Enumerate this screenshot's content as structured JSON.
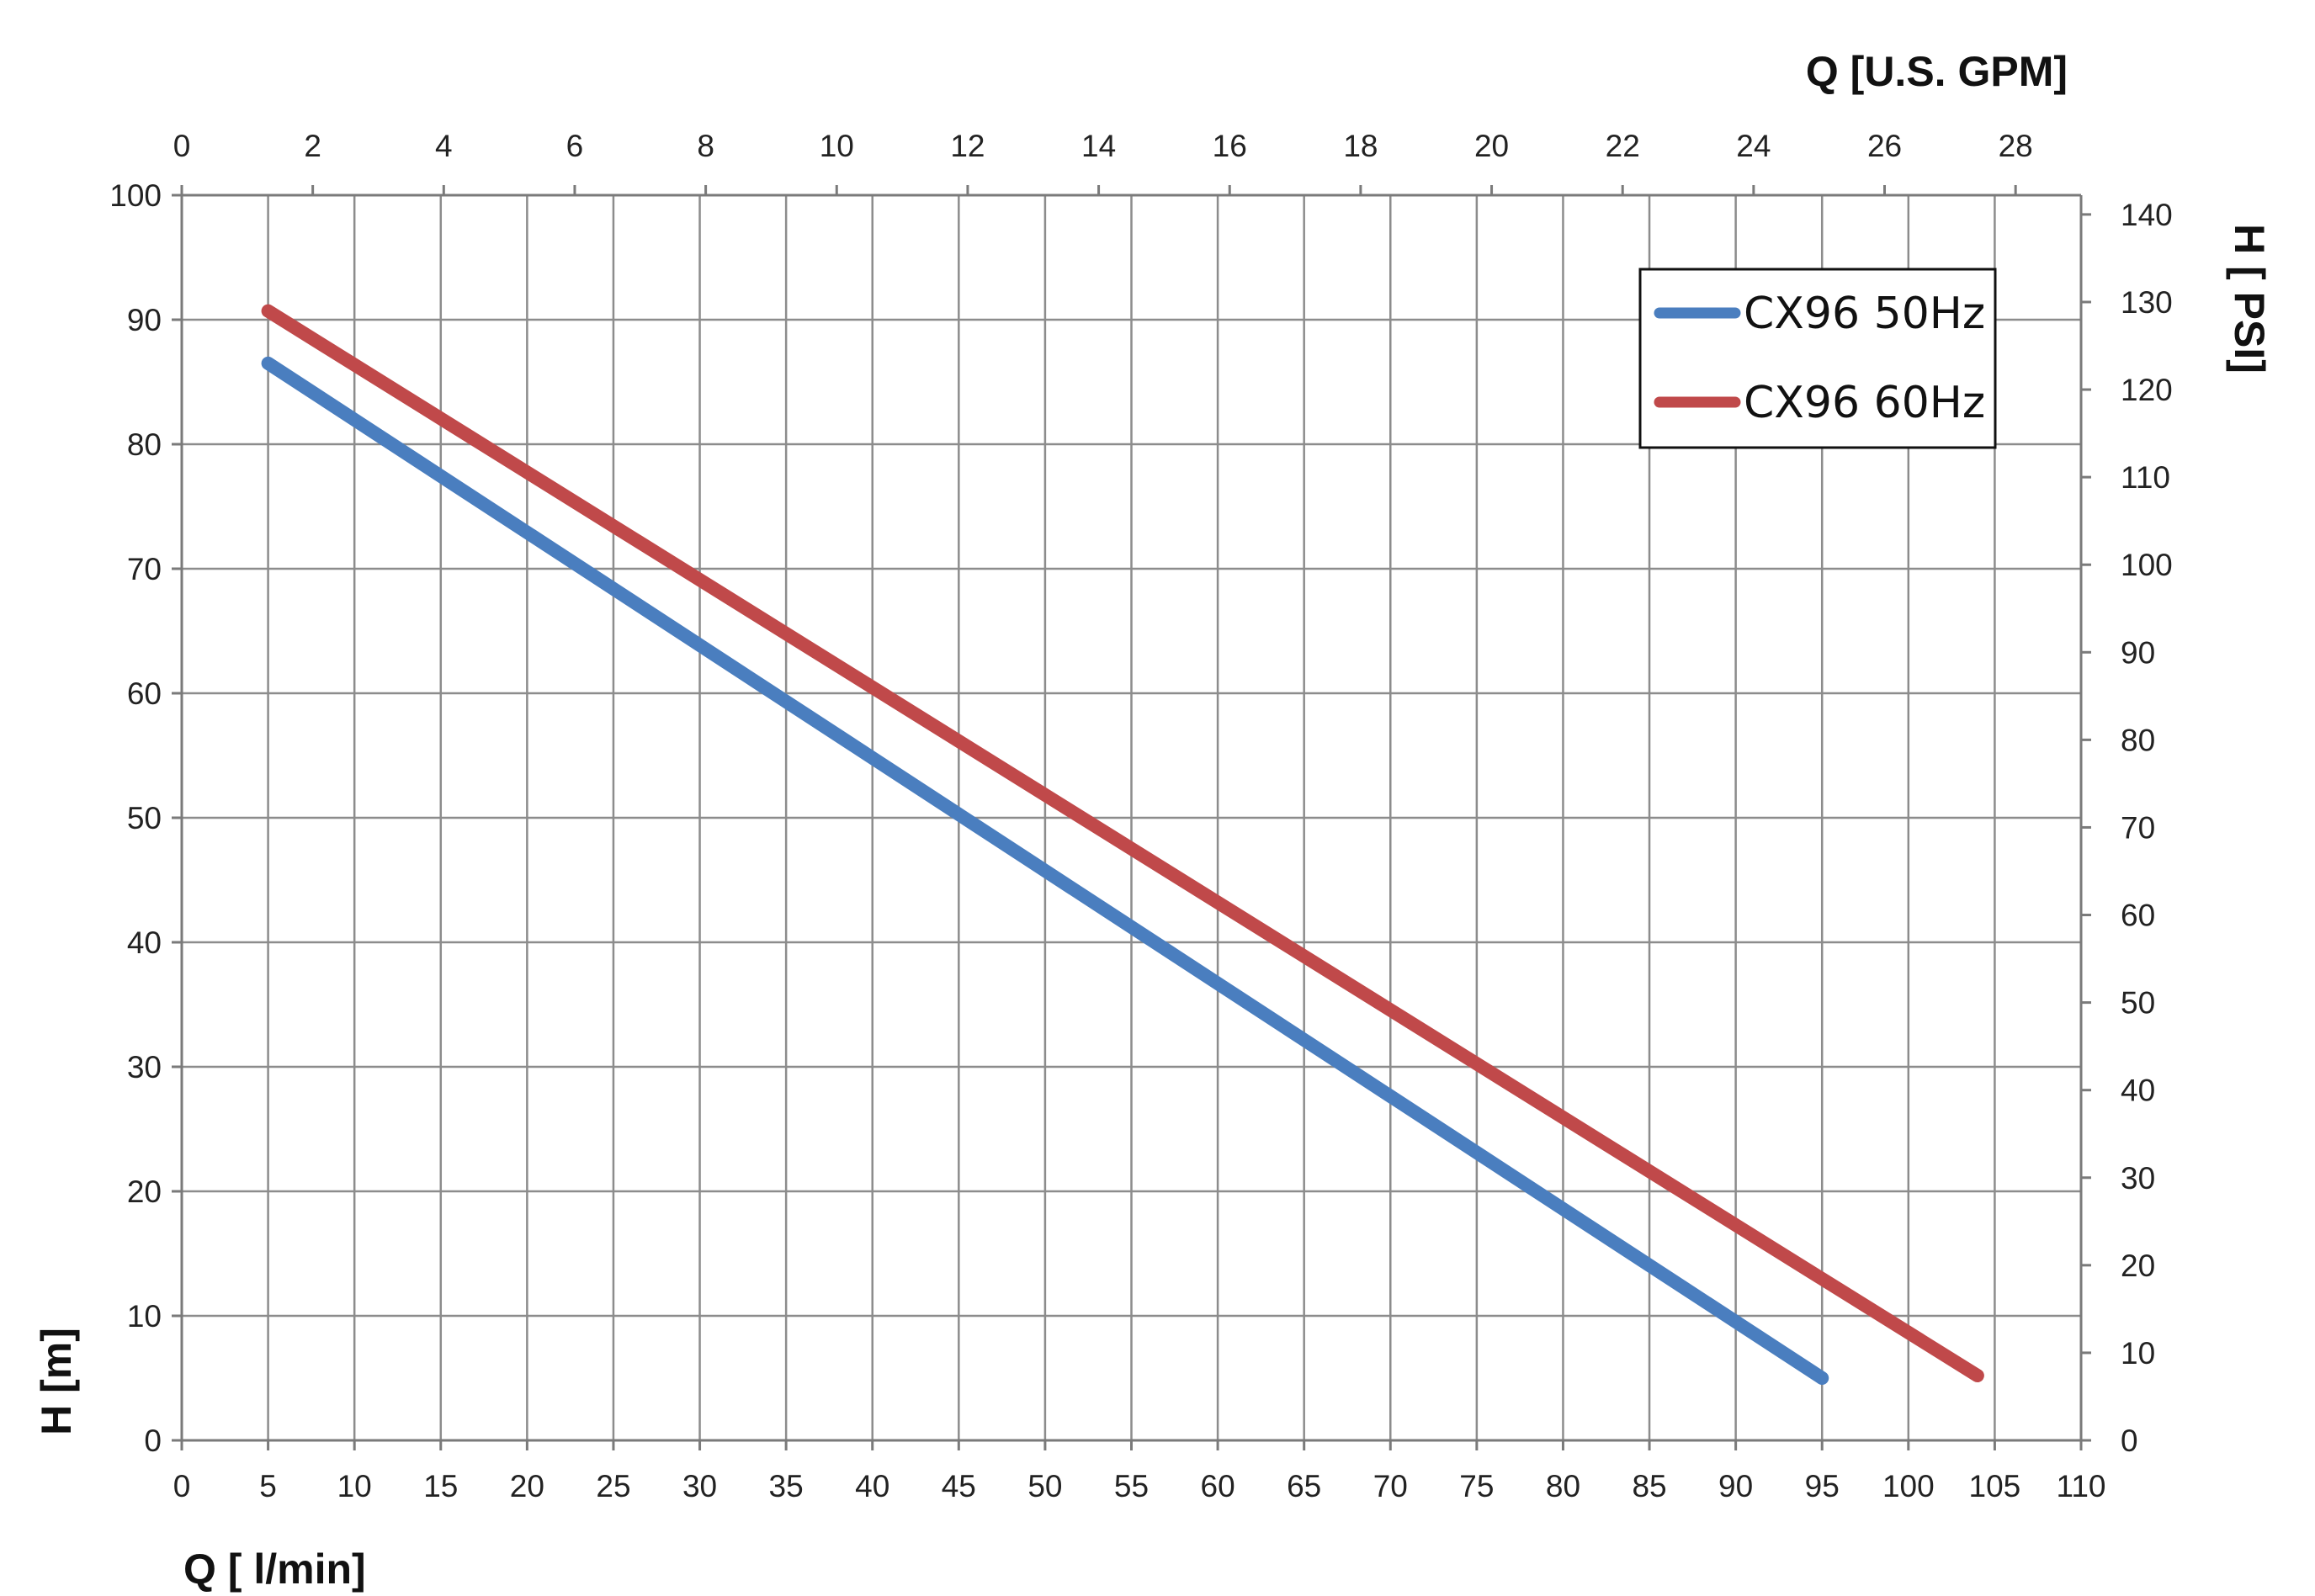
{
  "chart_data": {
    "type": "line",
    "xlabel": "Q [ l/min]",
    "ylabel": "H [m]",
    "x2label": "Q  [U.S. GPM]",
    "y2label": "H [ PSI]",
    "xlim": [
      0,
      110
    ],
    "ylim": [
      0,
      100
    ],
    "x2lim": [
      0,
      29
    ],
    "y2lim": [
      0,
      142.2
    ],
    "x_ticks": [
      "0",
      "5",
      "10",
      "15",
      "20",
      "25",
      "30",
      "35",
      "40",
      "45",
      "50",
      "55",
      "60",
      "65",
      "70",
      "75",
      "80",
      "85",
      "90",
      "95",
      "100",
      "105",
      "110"
    ],
    "y_ticks": [
      "0",
      "10",
      "20",
      "30",
      "40",
      "50",
      "60",
      "70",
      "80",
      "90",
      "100"
    ],
    "x2_ticks": [
      "0",
      "2",
      "4",
      "6",
      "8",
      "10",
      "12",
      "14",
      "16",
      "18",
      "20",
      "22",
      "24",
      "26",
      "28"
    ],
    "y2_ticks": [
      "0",
      "10",
      "20",
      "30",
      "40",
      "50",
      "60",
      "70",
      "80",
      "90",
      "100",
      "110",
      "120",
      "130",
      "140"
    ],
    "grid": true,
    "legend": "top-right",
    "series": [
      {
        "name": "CX96 50Hz",
        "color": "#4a7ebf",
        "x": [
          5,
          95
        ],
        "y": [
          86.5,
          5
        ]
      },
      {
        "name": "CX96 60Hz",
        "color": "#c0494a",
        "x": [
          5,
          104
        ],
        "y": [
          90.7,
          5.2
        ]
      }
    ]
  }
}
